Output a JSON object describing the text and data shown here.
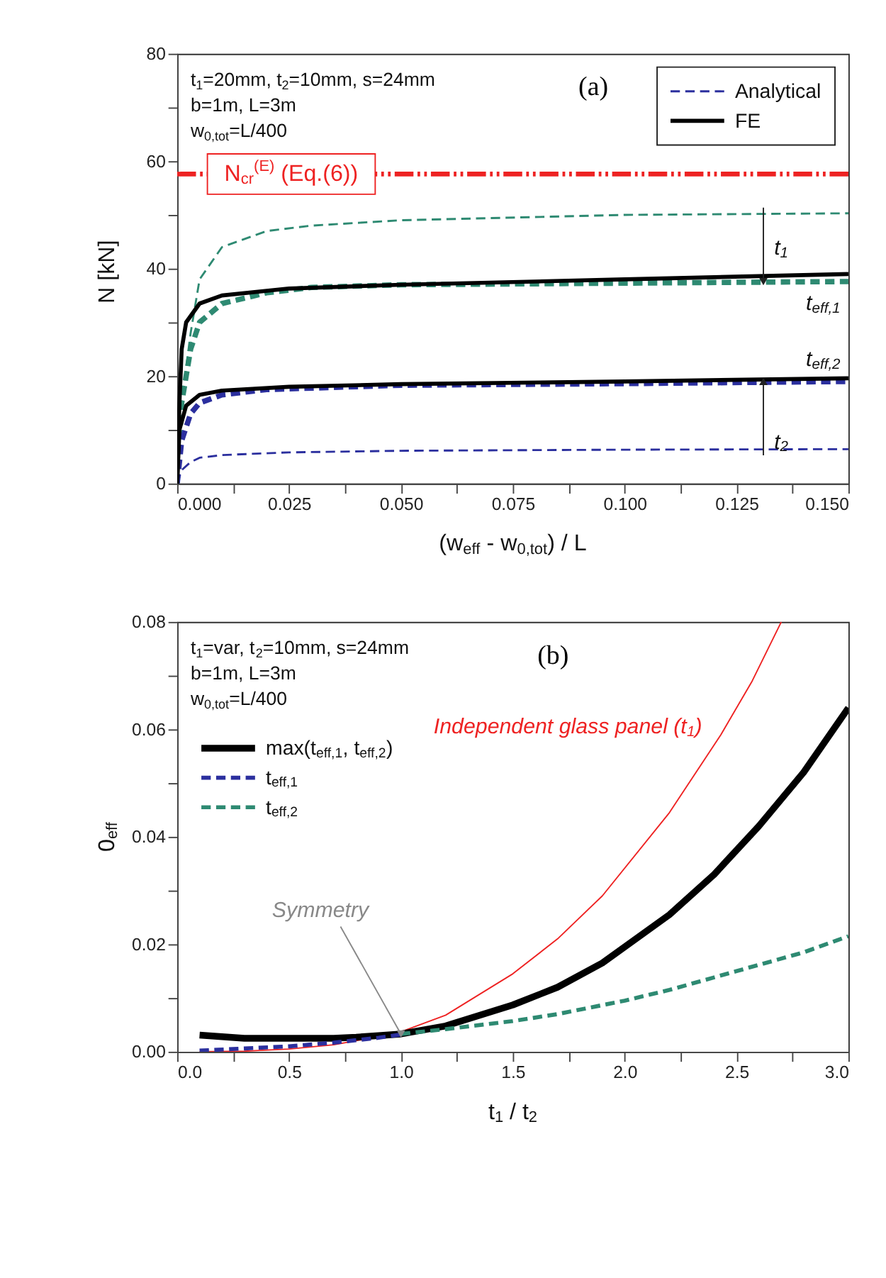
{
  "chart_data": [
    {
      "type": "line",
      "title": "(a)",
      "xlabel": "(w$_{eff}$ - w$_{0,tot}$) / L",
      "ylabel": "N  [kN]",
      "xlim": [
        0,
        0.15
      ],
      "xticks": [
        {
          "value": 0,
          "label": "0.000"
        },
        {
          "value": 0.0125,
          "label": null
        },
        {
          "value": 0.025,
          "label": "0.025"
        },
        {
          "value": 0.0375,
          "label": null
        },
        {
          "value": 0.05,
          "label": "0.050"
        },
        {
          "value": 0.0625,
          "label": null
        },
        {
          "value": 0.075,
          "label": "0.075"
        },
        {
          "value": 0.0875,
          "label": null
        },
        {
          "value": 0.1,
          "label": "0.100"
        },
        {
          "value": 0.1125,
          "label": null
        },
        {
          "value": 0.125,
          "label": "0.125"
        },
        {
          "value": 0.1375,
          "label": null
        },
        {
          "value": 0.15,
          "label": "0.150"
        }
      ],
      "ylim": [
        0,
        80
      ],
      "yticks": [
        0,
        {
          "value": 10,
          "label": null
        },
        20,
        {
          "value": 30,
          "label": null
        },
        40,
        {
          "value": 50,
          "label": null
        },
        60,
        {
          "value": 70,
          "label": null
        },
        80
      ],
      "grid": false,
      "legend": "top right",
      "series": [
        {
          "color": "#2e8a72",
          "line_style": "dashed",
          "x": [
            0,
            0.001,
            0.003,
            0.005,
            0.01,
            0.02,
            0.03,
            0.05,
            0.1,
            0.15
          ],
          "values": [
            0,
            15,
            28,
            38,
            44,
            47,
            48,
            49,
            50,
            50.3
          ]
        },
        {
          "color": "#2e8a72",
          "line_style": "dashed",
          "x": [
            0,
            0.001,
            0.003,
            0.005,
            0.01,
            0.02,
            0.03,
            0.05,
            0.1,
            0.15
          ],
          "values": [
            0,
            15,
            25,
            30,
            33.5,
            35.5,
            36.5,
            37,
            37.3,
            37.6
          ]
        },
        {
          "color": "#2b2f9e",
          "line_style": "dashed",
          "x": [
            0,
            0.001,
            0.003,
            0.005,
            0.01,
            0.02,
            0.05,
            0.1,
            0.15
          ],
          "values": [
            0,
            8,
            13,
            15,
            16.5,
            17.5,
            18.3,
            18.6,
            19
          ]
        },
        {
          "name": "Analytical",
          "color": "#2b2f9e",
          "line_style": "dashed",
          "x": [
            0,
            0.001,
            0.003,
            0.005,
            0.01,
            0.025,
            0.05,
            0.1,
            0.15
          ],
          "values": [
            0,
            2.5,
            4,
            4.8,
            5.3,
            5.8,
            6.1,
            6.3,
            6.4
          ]
        },
        {
          "name": "FE",
          "color": "#000000",
          "line_style": "solid",
          "x": [
            0,
            0.0005,
            0.001,
            0.002,
            0.005,
            0.01,
            0.025,
            0.05,
            0.1,
            0.15
          ],
          "values": [
            0,
            15,
            25,
            30,
            33.5,
            35,
            36.3,
            37,
            38,
            39
          ]
        },
        {
          "color": "#000000",
          "line_style": "solid",
          "x": [
            0,
            0.0005,
            0.002,
            0.005,
            0.01,
            0.025,
            0.05,
            0.1,
            0.15
          ],
          "values": [
            0,
            10,
            14.5,
            16.5,
            17.3,
            18,
            18.5,
            19,
            19.6
          ]
        }
      ],
      "ref_lines": [
        {
          "axis": "y",
          "value": 57.6,
          "label": "N$_{cr}$$^{(E)}$ (Eq.(6))",
          "color": "#ee2222",
          "line_style": "dashed"
        }
      ],
      "annotations": [
        "t$_{1}$=20mm, t$_{2}$=10mm, s=24mm",
        "b=1m, L=3m",
        "w$_{0,tot}$=L/400",
        {
          "text": "t$_{1}$",
          "x": 0.131,
          "y": 37.6
        },
        {
          "text": "t$_{eff,1}$",
          "x": 0.15,
          "y": 37.6
        },
        {
          "text": "t$_{eff,2}$",
          "x": 0.15,
          "y": 19.6
        },
        {
          "text": "t$_{2}$",
          "x": 0.131,
          "y": 19
        }
      ]
    },
    {
      "type": "line",
      "title": "(b)",
      "xlabel": "t$_{1}$ / t$_{2}$",
      "ylabel": "0$_{eff}$",
      "xlim": [
        0,
        3.0
      ],
      "xticks": [
        {
          "value": 0,
          "label": "0.0"
        },
        {
          "value": 0.25,
          "label": null
        },
        0.5,
        {
          "value": 0.75,
          "label": null
        },
        {
          "value": 1,
          "label": "1.0"
        },
        {
          "value": 1.25,
          "label": null
        },
        1.5,
        {
          "value": 1.75,
          "label": null
        },
        {
          "value": 2,
          "label": "2.0"
        },
        {
          "value": 2.25,
          "label": null
        },
        2.5,
        {
          "value": 2.75,
          "label": null
        },
        {
          "value": 3,
          "label": "3.0"
        }
      ],
      "ylim": [
        0,
        0.08
      ],
      "yticks": [
        {
          "value": 0,
          "label": "0.00"
        },
        {
          "value": 0.01,
          "label": null
        },
        0.02,
        {
          "value": 0.03,
          "label": null
        },
        0.04,
        {
          "value": 0.05,
          "label": null
        },
        0.06,
        {
          "value": 0.07,
          "label": null
        },
        0.08
      ],
      "grid": false,
      "legend": "top left",
      "series": [
        {
          "color": "#ee2222",
          "line_style": "solid",
          "x": [
            0.1,
            0.3,
            0.5,
            0.7,
            0.9,
            1.0,
            1.2,
            1.5,
            1.7,
            1.9,
            2.2,
            2.43,
            2.57,
            2.7
          ],
          "values": [
            0,
            0.0001,
            0.0005,
            0.0013,
            0.0028,
            0.0037,
            0.0068,
            0.0145,
            0.021,
            0.029,
            0.0445,
            0.059,
            0.069,
            0.08
          ]
        },
        {
          "name": "max(t$_{eff,1}$, t$_{eff,2}$)",
          "color": "#000000",
          "line_style": "solid",
          "x": [
            0.1,
            0.3,
            0.5,
            0.7,
            0.8,
            0.9,
            1.0,
            1.2,
            1.5,
            1.7,
            1.9,
            2.2,
            2.4,
            2.6,
            2.8,
            3.0
          ],
          "values": [
            0.0031,
            0.0025,
            0.0025,
            0.0025,
            0.0027,
            0.003,
            0.0033,
            0.0048,
            0.0087,
            0.012,
            0.0165,
            0.0255,
            0.033,
            0.042,
            0.052,
            0.064
          ]
        },
        {
          "name": "t$_{eff,1}$",
          "color": "#2b2f9e",
          "line_style": "dashed",
          "x": [
            0.1,
            0.3,
            0.5,
            0.7,
            0.9,
            1.0
          ],
          "values": [
            0.0002,
            0.0006,
            0.001,
            0.0017,
            0.0026,
            0.0032
          ]
        },
        {
          "name": "t$_{eff,2}$",
          "color": "#2e8a72",
          "line_style": "dashed",
          "x": [
            1.0,
            1.2,
            1.5,
            1.7,
            2.0,
            2.2,
            2.5,
            2.8,
            3.0
          ],
          "values": [
            0.0033,
            0.0042,
            0.0057,
            0.007,
            0.0095,
            0.0115,
            0.015,
            0.0185,
            0.0215
          ]
        }
      ],
      "annotations": [
        "t$_{1}$=var, t$_{2}$=10mm, s=24mm",
        "b=1m, L=3m",
        "w$_{0,tot}$=L/400",
        {
          "text": "Independent glass panel (t$_{1}$)",
          "x": 2.43,
          "y": 0.059
        },
        {
          "text": "Symmetry",
          "x": 1.0,
          "y": 0.0033
        }
      ]
    }
  ]
}
